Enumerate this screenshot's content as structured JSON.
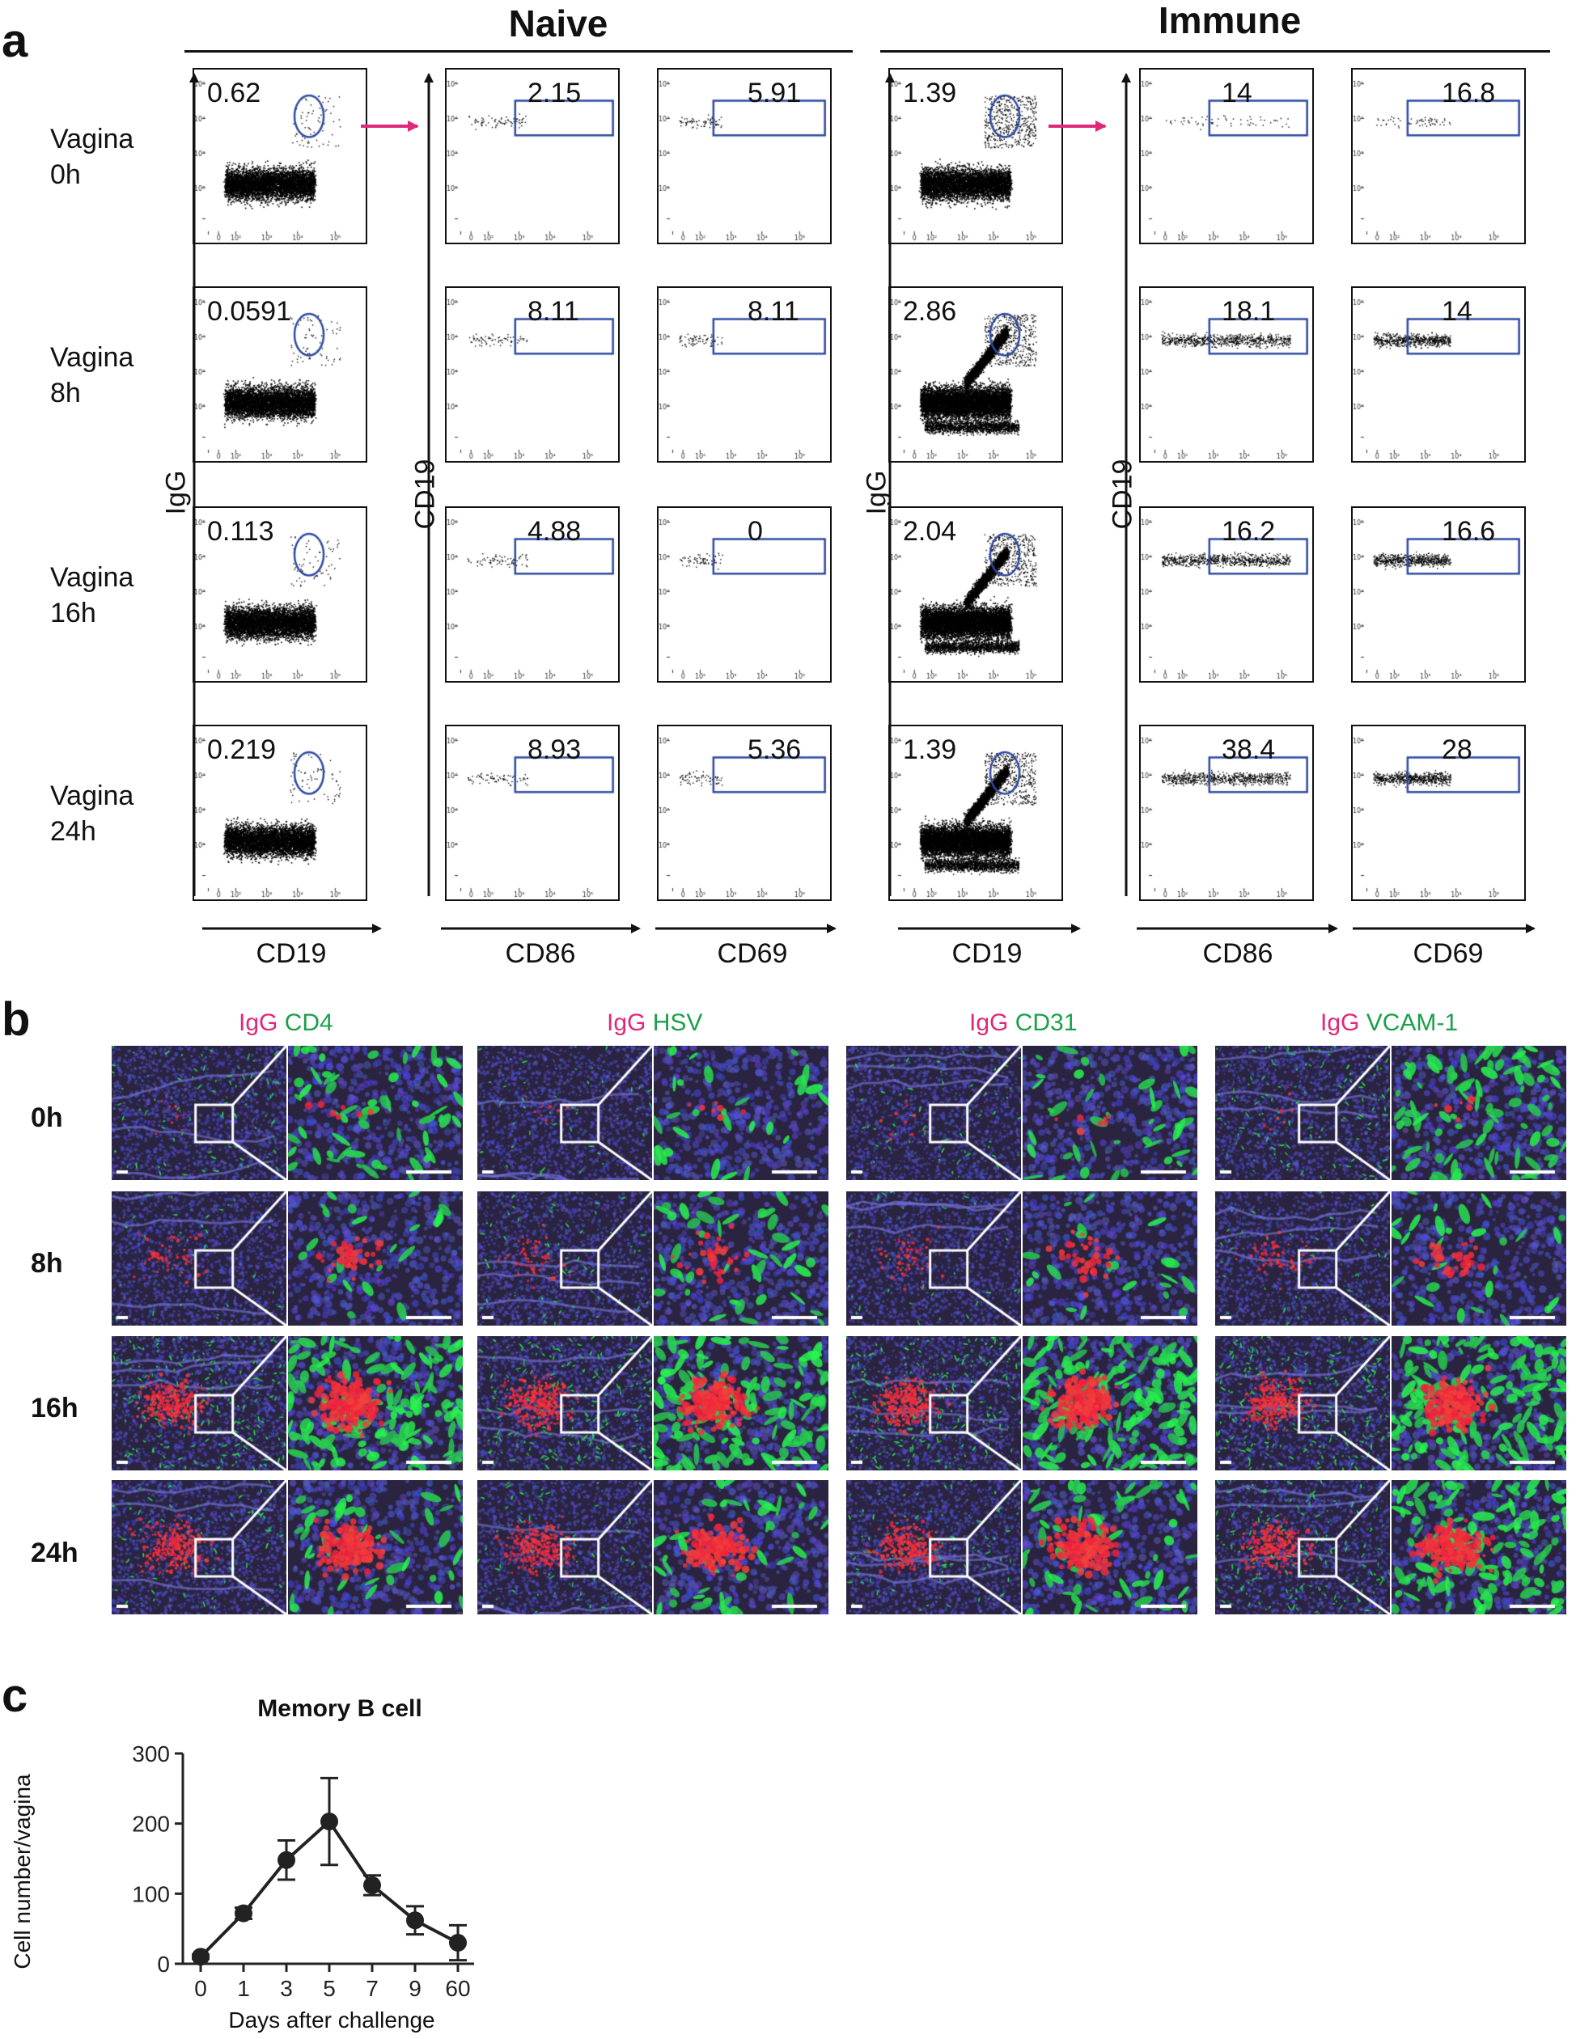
{
  "panel_a": {
    "letter": "a",
    "groups": [
      {
        "title": "Naive",
        "y_label_first": "IgG",
        "y_label_second": "CD19",
        "x_labels": [
          "CD19",
          "CD86",
          "CD69"
        ],
        "rows": [
          {
            "label": "Vagina\n0h",
            "igg_pct": "0.62",
            "cd86_pct": "2.15",
            "cd69_pct": "5.91"
          },
          {
            "label": "Vagina\n8h",
            "igg_pct": "0.0591",
            "cd86_pct": "8.11",
            "cd69_pct": "8.11"
          },
          {
            "label": "Vagina\n16h",
            "igg_pct": "0.113",
            "cd86_pct": "4.88",
            "cd69_pct": "0"
          },
          {
            "label": "Vagina\n24h",
            "igg_pct": "0.219",
            "cd86_pct": "8.93",
            "cd69_pct": "5.36"
          }
        ]
      },
      {
        "title": "Immune",
        "y_label_first": "IgG",
        "y_label_second": "CD19",
        "x_labels": [
          "CD19",
          "CD86",
          "CD69"
        ],
        "rows": [
          {
            "igg_pct": "1.39",
            "cd86_pct": "14",
            "cd69_pct": "16.8"
          },
          {
            "igg_pct": "2.86",
            "cd86_pct": "18.1",
            "cd69_pct": "14"
          },
          {
            "igg_pct": "2.04",
            "cd86_pct": "16.2",
            "cd69_pct": "16.6"
          },
          {
            "igg_pct": "1.39",
            "cd86_pct": "38.4",
            "cd69_pct": "28"
          }
        ]
      }
    ],
    "colors": {
      "gate": "#2e4aa3",
      "arrow": "#e0287a",
      "dots": "#000000"
    }
  },
  "panel_b": {
    "letter": "b",
    "stains": [
      {
        "red": "IgG",
        "green": "CD4"
      },
      {
        "red": "IgG",
        "green": "HSV"
      },
      {
        "red": "IgG",
        "green": "CD31"
      },
      {
        "red": "IgG",
        "green": "VCAM-1"
      }
    ],
    "timepoints": [
      "0h",
      "8h",
      "16h",
      "24h"
    ],
    "colors": {
      "red_label": "#e0287a",
      "green_label": "#1aa04a"
    }
  },
  "panel_c": {
    "letter": "c",
    "chart_data": {
      "type": "line",
      "title": "Memory B cell",
      "xlabel": "Days after challenge",
      "ylabel": "Cell number/vagina",
      "categories": [
        "0",
        "1",
        "3",
        "5",
        "7",
        "9",
        "60"
      ],
      "values": [
        10,
        72,
        148,
        203,
        112,
        62,
        30
      ],
      "error": [
        3,
        8,
        28,
        62,
        14,
        20,
        25
      ],
      "ylim": [
        0,
        300
      ],
      "yticks": [
        "0",
        "100",
        "200",
        "300"
      ],
      "color": "#222222"
    }
  }
}
